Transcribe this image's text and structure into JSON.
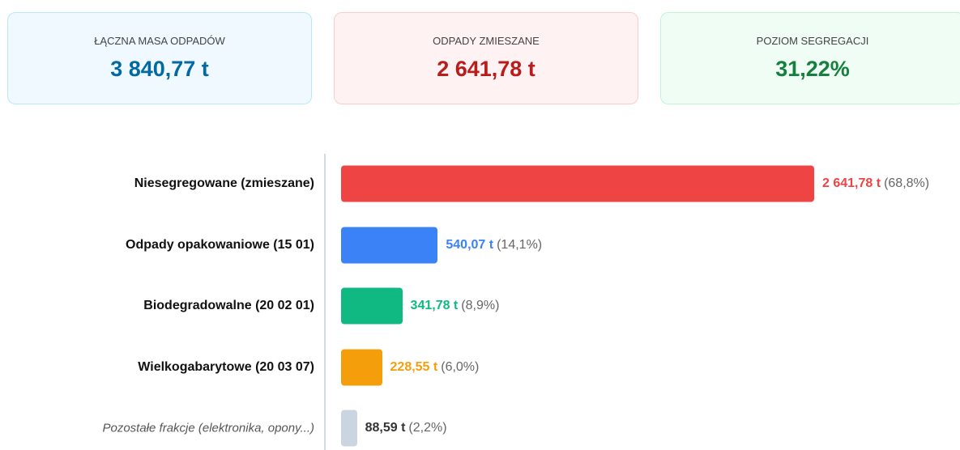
{
  "cards": [
    {
      "label": "ŁĄCZNA MASA ODPADÓW",
      "value": "3 840,77 t"
    },
    {
      "label": "ODPADY ZMIESZANE",
      "value": "2 641,78 t"
    },
    {
      "label": "POZIOM SEGREGACJI",
      "value": "31,22%"
    }
  ],
  "chart_data": {
    "type": "bar",
    "categories": [
      "Niesegregowane (zmieszane)",
      "Odpady opakowaniowe (15 01)",
      "Biodegradowalne (20 02 01)",
      "Wielkogabarytowe (20 03 07)",
      "Pozostałe frakcje (elektronika, opony...)"
    ],
    "values": [
      2641.78,
      540.07,
      341.78,
      228.55,
      88.59
    ],
    "value_labels": [
      "2 641,78 t",
      "540,07 t",
      "341,78 t",
      "228,55 t",
      "88,59 t"
    ],
    "share_labels": [
      "(68,8%)",
      "(14,1%)",
      "(8,9%)",
      "(6,0%)",
      "(2,2%)"
    ],
    "colors": [
      "#ef4444",
      "#3b82f6",
      "#10b981",
      "#f59e0b",
      "#cbd5e1"
    ]
  }
}
